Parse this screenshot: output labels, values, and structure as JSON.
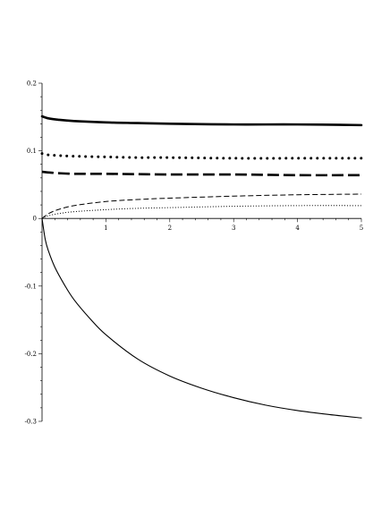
{
  "chart_data": {
    "type": "line",
    "title": "",
    "xlabel": "",
    "ylabel": "",
    "xlim": [
      0,
      5
    ],
    "ylim": [
      -0.3,
      0.2
    ],
    "grid": false,
    "legend": "none",
    "x_ticks": [
      {
        "value": 1,
        "label": "1"
      },
      {
        "value": 2,
        "label": "2"
      },
      {
        "value": 3,
        "label": "3"
      },
      {
        "value": 4,
        "label": "4"
      },
      {
        "value": 5,
        "label": "5"
      }
    ],
    "y_ticks": [
      {
        "value": 0.2,
        "label": "0.2"
      },
      {
        "value": 0.1,
        "label": "0.1"
      },
      {
        "value": 0,
        "label": "0"
      },
      {
        "value": -0.1,
        "label": "-0.1"
      },
      {
        "value": -0.2,
        "label": "-0.2"
      },
      {
        "value": -0.3,
        "label": "-0.3"
      }
    ],
    "series": [
      {
        "style": "thick-solid",
        "x": [
          0,
          0.1,
          0.25,
          0.5,
          1,
          1.5,
          2,
          3,
          4,
          5
        ],
        "y": [
          0.151,
          0.148,
          0.146,
          0.144,
          0.142,
          0.141,
          0.14,
          0.139,
          0.139,
          0.138
        ]
      },
      {
        "style": "thick-dotted",
        "x": [
          0,
          0.1,
          0.25,
          0.5,
          1,
          1.5,
          2,
          3,
          4,
          5
        ],
        "y": [
          0.096,
          0.094,
          0.093,
          0.092,
          0.091,
          0.09,
          0.09,
          0.089,
          0.089,
          0.089
        ]
      },
      {
        "style": "thick-dashed",
        "x": [
          0,
          0.1,
          0.25,
          0.5,
          1,
          2,
          3,
          4,
          5
        ],
        "y": [
          0.069,
          0.068,
          0.067,
          0.066,
          0.066,
          0.065,
          0.065,
          0.064,
          0.064
        ]
      },
      {
        "style": "thin-dashed",
        "x": [
          0,
          0.1,
          0.25,
          0.5,
          1,
          1.5,
          2,
          3,
          4,
          5
        ],
        "y": [
          0,
          0.007,
          0.013,
          0.019,
          0.025,
          0.028,
          0.03,
          0.033,
          0.035,
          0.036
        ]
      },
      {
        "style": "thin-dotted",
        "x": [
          0,
          0.1,
          0.25,
          0.5,
          1,
          1.5,
          2,
          3,
          4,
          5
        ],
        "y": [
          0,
          0.004,
          0.007,
          0.01,
          0.013,
          0.015,
          0.016,
          0.018,
          0.019,
          0.019
        ]
      },
      {
        "style": "thin-solid",
        "x": [
          0,
          0.05,
          0.1,
          0.2,
          0.35,
          0.5,
          0.75,
          1,
          1.5,
          2,
          2.5,
          3,
          3.5,
          4,
          4.5,
          5
        ],
        "y": [
          0,
          -0.031,
          -0.048,
          -0.072,
          -0.098,
          -0.12,
          -0.148,
          -0.172,
          -0.208,
          -0.233,
          -0.251,
          -0.265,
          -0.276,
          -0.284,
          -0.29,
          -0.295
        ]
      }
    ]
  }
}
